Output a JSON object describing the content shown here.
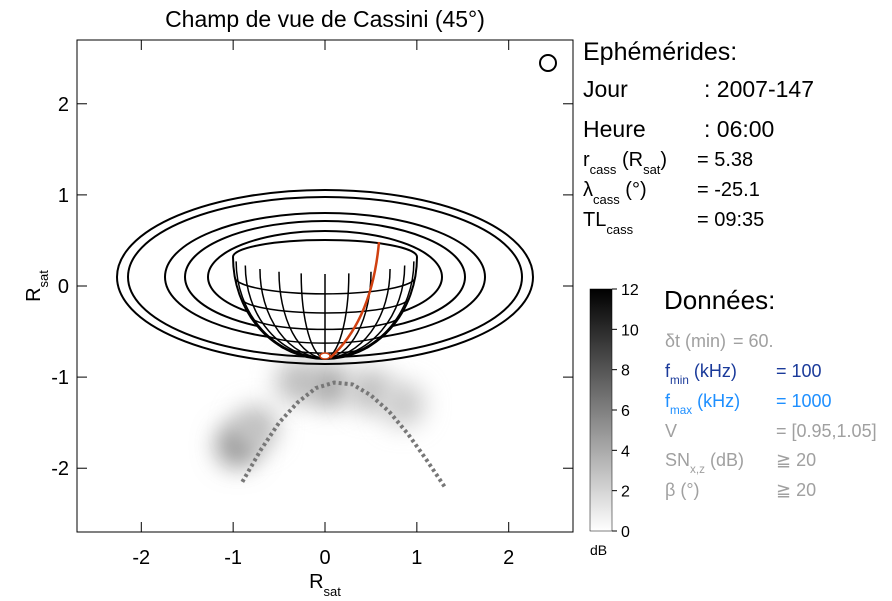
{
  "chart_data": {
    "type": "fov",
    "title": "Champ de vue de Cassini (45°)",
    "xlabel": [
      {
        "text": "R"
      },
      {
        "text": "sat",
        "sub": true
      }
    ],
    "ylabel": [
      {
        "text": "R"
      },
      {
        "text": "sat",
        "sub": true
      }
    ],
    "xlim": [
      -2.7,
      2.7
    ],
    "ylim": [
      -2.7,
      2.7
    ],
    "xticks": [
      -2,
      -1,
      0,
      1,
      2
    ],
    "yticks": [
      -2,
      -1,
      0,
      1,
      2
    ],
    "curve": {
      "x": [
        -0.9,
        -0.7,
        -0.5,
        -0.3,
        -0.1,
        0.1,
        0.3,
        0.5,
        0.7,
        0.9,
        1.1,
        1.3
      ],
      "y": [
        -2.15,
        -1.8,
        -1.5,
        -1.28,
        -1.12,
        -1.06,
        -1.08,
        -1.2,
        -1.38,
        -1.62,
        -1.9,
        -2.2
      ],
      "color": "#777777"
    },
    "intensity": {
      "x": [
        -0.95,
        -0.75,
        -0.3,
        0.05,
        0.5,
        0.85
      ],
      "y": [
        -1.75,
        -1.55,
        -1.05,
        -1.1,
        -1.15,
        -1.3
      ],
      "values": [
        5,
        3,
        3,
        4,
        3,
        2.5
      ]
    },
    "colorbar": {
      "lim": [
        0,
        12
      ],
      "ticks": [
        0,
        2,
        4,
        6,
        8,
        10,
        12
      ],
      "unit": "dB"
    }
  },
  "ephemerides": {
    "title": "Ephémérides:",
    "rows": [
      {
        "label": [
          {
            "text": "Jour"
          }
        ],
        "value": ": 2007-147"
      },
      {
        "label": [
          {
            "text": "Heure"
          }
        ],
        "value": ": 06:00"
      },
      {
        "label": [
          {
            "text": "r"
          },
          {
            "text": "cass",
            "sub": true
          },
          {
            "text": " (R"
          },
          {
            "text": "sat",
            "sub": true
          },
          {
            "text": ")"
          }
        ],
        "value": "= 5.38"
      },
      {
        "label": [
          {
            "text": "λ"
          },
          {
            "text": "cass",
            "sub": true
          },
          {
            "text": " (°)"
          }
        ],
        "value": "= -25.1"
      },
      {
        "label": [
          {
            "text": "TL"
          },
          {
            "text": "cass",
            "sub": true
          }
        ],
        "value": "= 09:35"
      }
    ]
  },
  "donnees": {
    "title": "Données:",
    "rows": [
      {
        "label": [
          {
            "text": "δt (min)"
          }
        ],
        "value": "= 60.",
        "color": "#a0a0a0"
      },
      {
        "label": [
          {
            "text": "f"
          },
          {
            "text": "min",
            "sub": true
          },
          {
            "text": " (kHz)"
          }
        ],
        "value": "= 100",
        "color": "#1a3a9a"
      },
      {
        "label": [
          {
            "text": "f"
          },
          {
            "text": "max",
            "sub": true
          },
          {
            "text": " (kHz)"
          }
        ],
        "value": "= 1000",
        "color": "#1e8fff"
      },
      {
        "label": [
          {
            "text": "V"
          }
        ],
        "value": "= [0.95,1.05]",
        "color": "#a0a0a0"
      },
      {
        "label": [
          {
            "text": "SN"
          },
          {
            "text": "x,z",
            "sub": true
          },
          {
            "text": " (dB)"
          }
        ],
        "value": "≧ 20",
        "color": "#a0a0a0"
      },
      {
        "label": [
          {
            "text": "β (°)"
          }
        ],
        "value": "≧ 20",
        "color": "#a0a0a0"
      }
    ]
  }
}
